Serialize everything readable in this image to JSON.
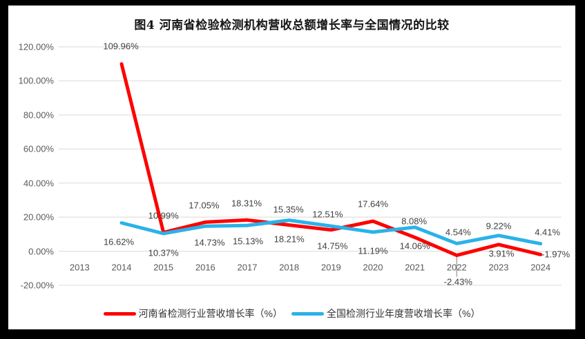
{
  "chart_data": {
    "type": "line",
    "title": "图4  河南省检验检测机构营收总额增长率与全国情况的比较",
    "categories": [
      "2013",
      "2014",
      "2015",
      "2016",
      "2017",
      "2018",
      "2019",
      "2020",
      "2021",
      "2022",
      "2023",
      "2024"
    ],
    "series": [
      {
        "name": "河南省检测行业营收增长率（%）",
        "color": "#FF0000",
        "values": [
          null,
          109.96,
          10.99,
          17.05,
          18.31,
          15.35,
          12.51,
          17.64,
          8.08,
          -2.43,
          3.91,
          -1.97
        ]
      },
      {
        "name": "全国检测行业年度营收增长率（%）",
        "color": "#2AB2E9",
        "values": [
          null,
          16.62,
          10.37,
          14.73,
          15.13,
          18.21,
          14.75,
          11.19,
          14.06,
          4.54,
          9.22,
          4.41
        ]
      }
    ],
    "ylim": [
      -20,
      120
    ],
    "ytick_labels": [
      "120.00%",
      "100.00%",
      "80.00%",
      "60.00%",
      "40.00%",
      "20.00%",
      "0.00%",
      "-20.00%"
    ],
    "grid": true,
    "legend_position": "bottom",
    "data_labels": true,
    "label_format": "0.00%"
  },
  "colors": {
    "grid": "#D9D9D9",
    "axis_text": "#595959",
    "data_label_text": "#3F3F3F",
    "leader_line": "#A6A6A6",
    "panel_background": "#FFFFFF",
    "surround_background": "#000000"
  }
}
